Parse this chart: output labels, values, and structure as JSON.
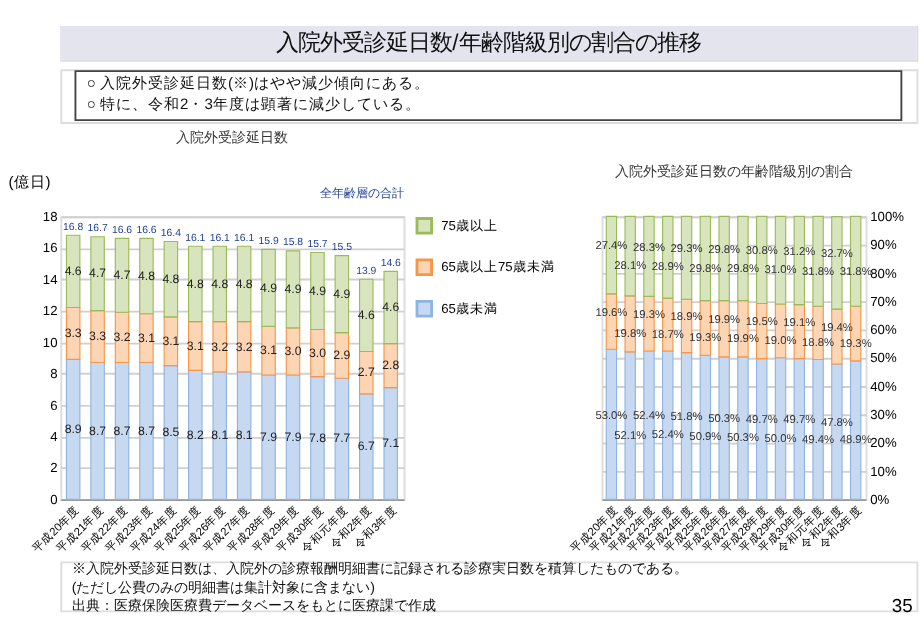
{
  "chart_data": [
    {
      "type": "bar",
      "stacked": true,
      "title": "入院外受診延日数",
      "ylabel": "(億日)",
      "categories": [
        "平成20年度",
        "平成21年度",
        "平成22年度",
        "平成23年度",
        "平成24年度",
        "平成25年度",
        "平成26年度",
        "平成27年度",
        "平成28年度",
        "平成29年度",
        "平成30年度",
        "令和元年度",
        "令和2年度",
        "令和3年度"
      ],
      "series": [
        {
          "name": "65歳未満",
          "color": "#c6d9f1",
          "values": [
            8.9,
            8.7,
            8.7,
            8.7,
            8.5,
            8.2,
            8.1,
            8.1,
            7.9,
            7.9,
            7.8,
            7.7,
            6.7,
            7.1
          ],
          "value_labels": [
            "8.9",
            "8.7",
            "8.7",
            "8.7",
            "8.5",
            "8.2",
            "8.1",
            "8.1",
            "7.9",
            "7.9",
            "7.8",
            "7.7",
            "6.7",
            "7.1"
          ]
        },
        {
          "name": "65歳以上75歳未満",
          "color": "#fcd5b5",
          "values": [
            3.3,
            3.3,
            3.2,
            3.1,
            3.1,
            3.1,
            3.2,
            3.2,
            3.1,
            3.0,
            3.0,
            2.9,
            2.7,
            2.8
          ],
          "value_labels": [
            "3.3",
            "3.3",
            "3.2",
            "3.1",
            "3.1",
            "3.1",
            "3.2",
            "3.2",
            "3.1",
            "3.0",
            "3.0",
            "2.9",
            "2.7",
            "2.8"
          ]
        },
        {
          "name": "75歳以上",
          "color": "#d7e4bd",
          "values": [
            4.6,
            4.7,
            4.7,
            4.8,
            4.8,
            4.8,
            4.8,
            4.8,
            4.9,
            4.9,
            4.9,
            4.9,
            4.6,
            4.6
          ],
          "value_labels": [
            "4.6",
            "4.7",
            "4.7",
            "4.8",
            "4.8",
            "4.8",
            "4.8",
            "4.8",
            "4.9",
            "4.9",
            "4.9",
            "4.9",
            "4.6",
            "4.6"
          ]
        }
      ],
      "totals": [
        "16.8",
        "16.7",
        "16.6",
        "16.6",
        "16.4",
        "16.1",
        "16.1",
        "16.1",
        "15.9",
        "15.8",
        "15.7",
        "15.5",
        "13.9",
        "14.6"
      ],
      "ylim": [
        0,
        18
      ],
      "yticks": [
        0,
        2,
        4,
        6,
        8,
        10,
        12,
        14,
        16,
        18
      ],
      "grid": "y",
      "legend": "right",
      "annotations": [
        "入院外受診延日数/年齢階級別の割合の推移",
        "○ 入院外受診延日数(※)はやや減少傾向にある。",
        "○ 特に、令和2・3年度は顕著に減少している。",
        "全年齢層の合計",
        "※入院外受診延日数は、入院外の診療報酬明細書に記録される診療実日数を積算したものである。",
        "(ただし公費のみの明細書は集計対象に含まない)",
        "出典：医療保険医療費データベースをもとに医療課で作成",
        "35"
      ]
    },
    {
      "type": "bar",
      "stacked": true,
      "title": "入院外受診延日数の年齢階級別の割合",
      "categories": [
        "平成20年度",
        "平成21年度",
        "平成22年度",
        "平成23年度",
        "平成24年度",
        "平成25年度",
        "平成26年度",
        "平成27年度",
        "平成28年度",
        "平成29年度",
        "平成30年度",
        "令和元年度",
        "令和2年度",
        "令和3年度"
      ],
      "series": [
        {
          "color": "#c6d9f1",
          "values": [
            53.0,
            52.1,
            52.4,
            52.4,
            51.8,
            50.9,
            50.3,
            50.3,
            49.7,
            50.0,
            49.7,
            49.4,
            47.8,
            48.9
          ],
          "value_labels": [
            "53.0%",
            "52.1%",
            "52.4%",
            "52.4%",
            "51.8%",
            "50.9%",
            "50.3%",
            "50.3%",
            "49.7%",
            "50.0%",
            "49.7%",
            "49.4%",
            "47.8%",
            "48.9%"
          ]
        },
        {
          "color": "#fcd5b5",
          "values": [
            19.6,
            19.8,
            19.3,
            18.7,
            18.9,
            19.3,
            19.9,
            19.9,
            19.5,
            19.0,
            19.1,
            18.8,
            19.4,
            19.3
          ],
          "value_labels": [
            "19.6%",
            "19.8%",
            "19.3%",
            "18.7%",
            "18.9%",
            "19.3%",
            "19.9%",
            "19.9%",
            "19.5%",
            "19.0%",
            "19.1%",
            "18.8%",
            "19.4%",
            "19.3%"
          ]
        },
        {
          "color": "#d7e4bd",
          "values": [
            27.4,
            28.1,
            28.3,
            28.9,
            29.3,
            29.8,
            29.8,
            29.8,
            30.8,
            31.0,
            31.2,
            31.8,
            32.7,
            31.8
          ],
          "value_labels": [
            "27.4%",
            "28.1%",
            "28.3%",
            "28.9%",
            "29.3%",
            "29.8%",
            "29.8%",
            "29.8%",
            "30.8%",
            "31.0%",
            "31.2%",
            "31.8%",
            "32.7%",
            "31.8%"
          ]
        }
      ],
      "ylim": [
        0,
        100
      ],
      "yticks": [
        {
          "value": 0,
          "label": "0%"
        },
        {
          "value": 10,
          "label": "10%"
        },
        {
          "value": 20,
          "label": "20%"
        },
        {
          "value": 30,
          "label": "30%"
        },
        {
          "value": 40,
          "label": "40%"
        },
        {
          "value": 50,
          "label": "50%"
        },
        {
          "value": 60,
          "label": "60%"
        },
        {
          "value": 70,
          "label": "70%"
        },
        {
          "value": 80,
          "label": "80%"
        },
        {
          "value": 90,
          "label": "90%"
        },
        {
          "value": 100,
          "label": "100%"
        }
      ],
      "grid": "y"
    }
  ]
}
